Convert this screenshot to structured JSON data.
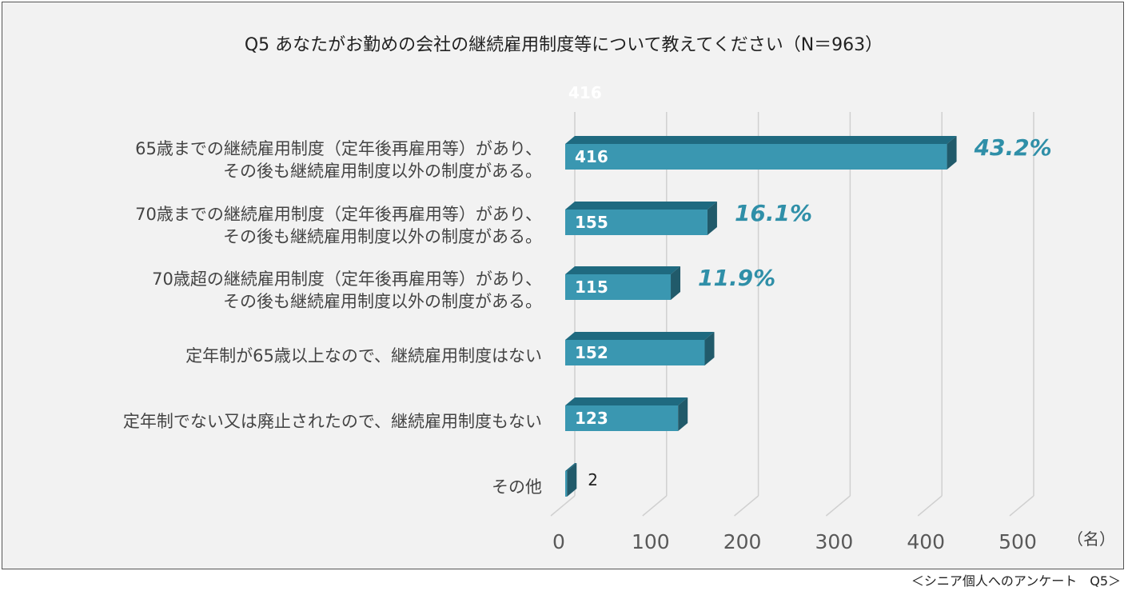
{
  "chart_data": {
    "type": "bar",
    "orientation": "horizontal",
    "title": "Q5 あなたがお勤めの会社の継続雇用制度等について教えてください（N＝963）",
    "categories": [
      [
        "65歳までの継続雇用制度（定年後再雇用等）があり、",
        "その後も継続雇用制度以外の制度がある。"
      ],
      [
        "70歳までの継続雇用制度（定年後再雇用等）があり、",
        "その後も継続雇用制度以外の制度がある。"
      ],
      [
        "70歳超の継続雇用制度（定年後再雇用等）があり、",
        "その後も継続雇用制度以外の制度がある。"
      ],
      [
        "定年制が65歳以上なので、継続雇用制度はない"
      ],
      [
        "定年制でない又は廃止されたので、継続雇用制度もない"
      ],
      [
        "その他"
      ]
    ],
    "values": [
      416,
      155,
      115,
      152,
      123,
      2
    ],
    "value_labels": [
      "416",
      "155",
      "115",
      "152",
      "123",
      "2"
    ],
    "percent_labels": [
      "43.2%",
      "16.1%",
      "11.9%",
      "",
      "",
      ""
    ],
    "ghost_label": "416",
    "xlim": [
      0,
      500
    ],
    "xticks": [
      "0",
      "100",
      "200",
      "300",
      "400",
      "500"
    ],
    "xtick_values": [
      0,
      100,
      200,
      300,
      400,
      500
    ],
    "xlabel": "（名）",
    "grid": true,
    "colors": {
      "bar_face": "#3a97b1",
      "bar_top": "#1f6a80",
      "bar_side": "#215a6a",
      "percent": "#2f8fa8",
      "grid": "#d0d0d0"
    }
  },
  "source": "＜シニア個人へのアンケート　Q5＞"
}
